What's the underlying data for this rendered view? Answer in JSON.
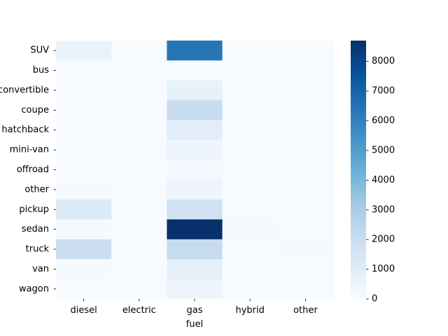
{
  "chart_data": {
    "type": "heatmap",
    "title": "",
    "xlabel": "fuel",
    "ylabel": "",
    "x_categories": [
      "diesel",
      "electric",
      "gas",
      "hybrid",
      "other"
    ],
    "y_categories": [
      "SUV",
      "bus",
      "convertible",
      "coupe",
      "hatchback",
      "mini-van",
      "offroad",
      "other",
      "pickup",
      "sedan",
      "truck",
      "van",
      "wagon"
    ],
    "values": [
      [
        550,
        0,
        6400,
        10,
        15
      ],
      [
        15,
        0,
        20,
        0,
        0
      ],
      [
        5,
        0,
        700,
        5,
        0
      ],
      [
        20,
        0,
        2100,
        10,
        5
      ],
      [
        10,
        0,
        950,
        15,
        5
      ],
      [
        25,
        0,
        400,
        5,
        0
      ],
      [
        20,
        0,
        180,
        0,
        0
      ],
      [
        40,
        0,
        380,
        10,
        15
      ],
      [
        1200,
        0,
        1750,
        5,
        20
      ],
      [
        80,
        0,
        8700,
        150,
        15
      ],
      [
        1900,
        0,
        2150,
        5,
        45
      ],
      [
        50,
        0,
        750,
        5,
        0
      ],
      [
        10,
        0,
        450,
        10,
        0
      ]
    ],
    "colorbar": {
      "min": 0,
      "max": 8700,
      "ticks": [
        0,
        1000,
        2000,
        3000,
        4000,
        5000,
        6000,
        7000,
        8000
      ]
    },
    "colormap": "Blues",
    "grid": false,
    "legend": "none"
  }
}
